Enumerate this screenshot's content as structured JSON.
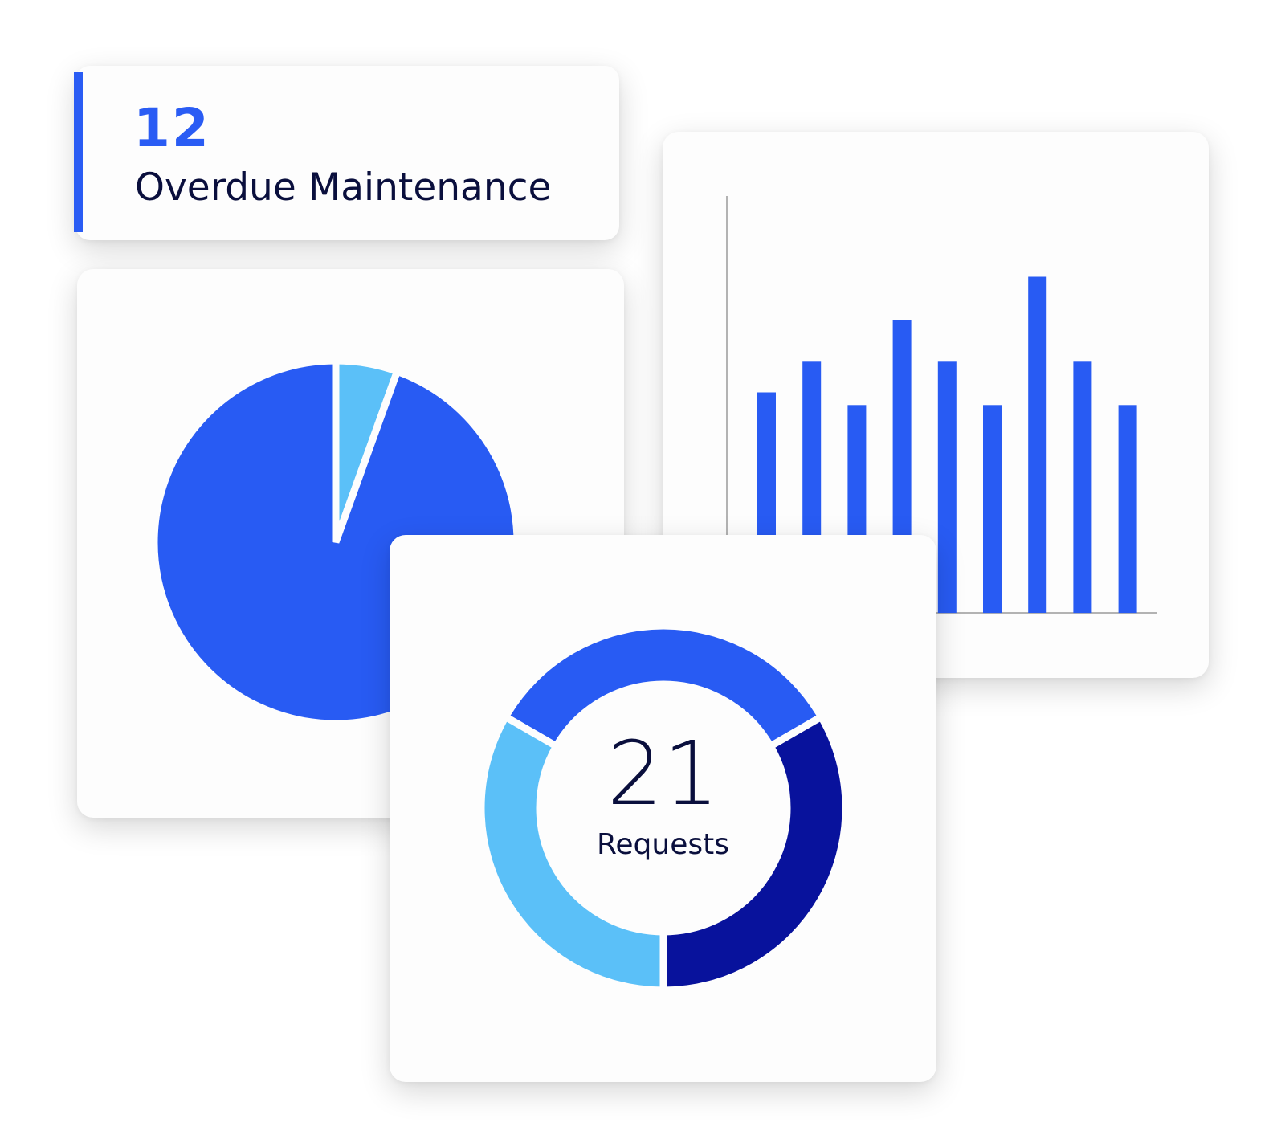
{
  "kpi": {
    "value": "12",
    "label": "Overdue Maintenance",
    "accent_color": "#2a5cf4"
  },
  "pie_card": {
    "chart_data": {
      "type": "pie",
      "slices": [
        {
          "value": 5.5,
          "color": "#5bc0f8"
        },
        {
          "value": 94.5,
          "color": "#285bf3"
        }
      ]
    }
  },
  "bar_card": {
    "chart_data": {
      "type": "bar",
      "values": [
        6.1,
        6.95,
        5.75,
        8.1,
        6.95,
        5.75,
        9.3,
        6.95,
        5.75
      ],
      "ylim": [
        0,
        11.6
      ],
      "bar_color": "#285bf3",
      "axis_color": "#b3b3b3"
    }
  },
  "donut_card": {
    "value": "21",
    "label": "Requests",
    "chart_data": {
      "type": "pie",
      "slices": [
        {
          "value": 1,
          "color": "#285bf3"
        },
        {
          "value": 1,
          "color": "#08129c"
        },
        {
          "value": 1,
          "color": "#5bc0f8"
        }
      ]
    }
  }
}
